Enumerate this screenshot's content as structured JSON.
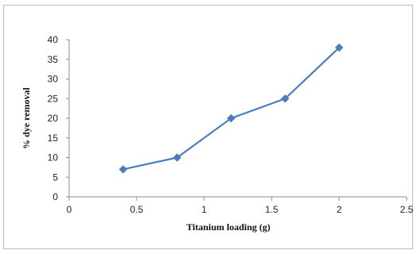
{
  "chart_data": {
    "type": "line",
    "title": "",
    "xlabel": "Titanium loading (g)",
    "ylabel": "% dye removal",
    "xlim": [
      0,
      2.5
    ],
    "ylim": [
      0,
      40
    ],
    "x_ticks": [
      "0",
      "0.5",
      "1",
      "1.5",
      "2",
      "2.5"
    ],
    "y_ticks": [
      "0",
      "5",
      "10",
      "15",
      "20",
      "25",
      "30",
      "35",
      "40"
    ],
    "grid": false,
    "legend": "none",
    "series": [
      {
        "x": [
          0.4,
          0.8,
          1.2,
          1.6,
          2.0
        ],
        "y": [
          7,
          10,
          20,
          25,
          38
        ],
        "color": "#4a7ebb",
        "marker": "diamond"
      }
    ]
  }
}
